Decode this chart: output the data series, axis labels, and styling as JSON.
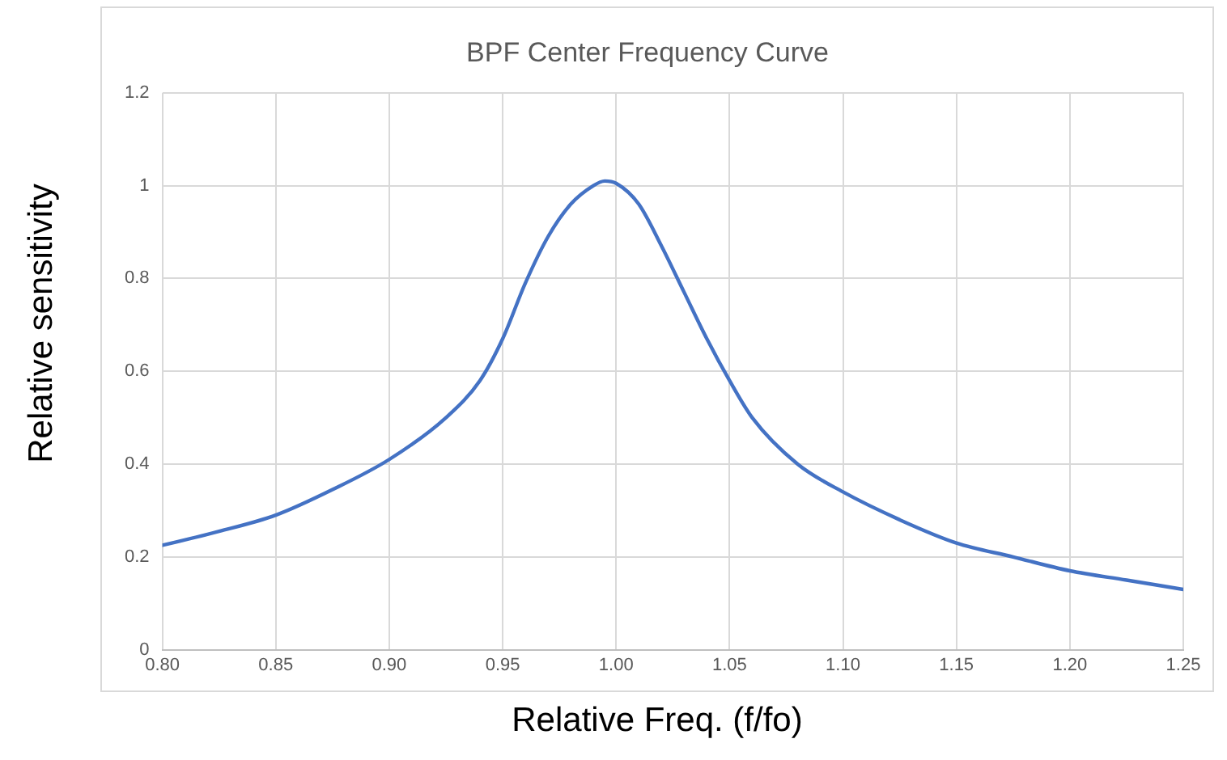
{
  "chart_data": {
    "type": "line",
    "title": "BPF Center Frequency Curve",
    "xlabel": "Relative Freq. (f/fo)",
    "ylabel": "Relative sensitivity",
    "x": [
      0.8,
      0.825,
      0.85,
      0.875,
      0.9,
      0.925,
      0.94,
      0.95,
      0.96,
      0.97,
      0.98,
      0.99,
      0.995,
      1.0,
      1.01,
      1.02,
      1.03,
      1.04,
      1.05,
      1.06,
      1.08,
      1.1,
      1.125,
      1.15,
      1.175,
      1.2,
      1.225,
      1.25
    ],
    "series": [
      {
        "color": "#4472c4",
        "values": [
          0.225,
          0.255,
          0.29,
          0.345,
          0.41,
          0.5,
          0.58,
          0.67,
          0.79,
          0.89,
          0.96,
          1.0,
          1.01,
          1.005,
          0.96,
          0.87,
          0.77,
          0.67,
          0.58,
          0.5,
          0.4,
          0.34,
          0.28,
          0.23,
          0.2,
          0.17,
          0.15,
          0.13
        ]
      }
    ],
    "xlim": [
      0.8,
      1.25
    ],
    "xticks": [
      {
        "value": 0.8,
        "label": "0.80"
      },
      {
        "value": 0.85,
        "label": "0.85"
      },
      {
        "value": 0.9,
        "label": "0.90"
      },
      {
        "value": 0.95,
        "label": "0.95"
      },
      {
        "value": 1.0,
        "label": "1.00"
      },
      {
        "value": 1.05,
        "label": "1.05"
      },
      {
        "value": 1.1,
        "label": "1.10"
      },
      {
        "value": 1.15,
        "label": "1.15"
      },
      {
        "value": 1.2,
        "label": "1.20"
      },
      {
        "value": 1.25,
        "label": "1.25"
      }
    ],
    "ylim": [
      0,
      1.2
    ],
    "yticks": [
      0,
      0.2,
      0.4,
      0.6,
      0.8,
      1,
      1.2
    ],
    "grid": true,
    "legend": false,
    "marker": "none",
    "line_style": "solid"
  }
}
